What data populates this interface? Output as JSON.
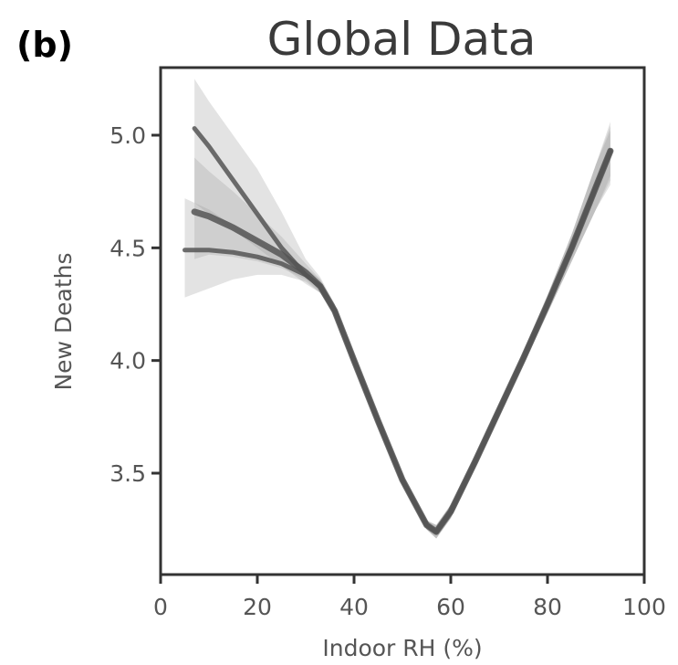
{
  "panel_label": "(b)",
  "chart_data": {
    "type": "line",
    "title": "Global Data",
    "xlabel": "Indoor RH (%)",
    "ylabel": "New Deaths",
    "xlim": [
      0,
      100
    ],
    "ylim": [
      3.05,
      5.3
    ],
    "xticks": [
      0,
      20,
      40,
      60,
      80,
      100
    ],
    "yticks": [
      3.5,
      4.0,
      4.5,
      5.0
    ],
    "grid": false,
    "colors": {
      "line": "#555555",
      "band": "#9a9a9a",
      "axis": "#333333"
    },
    "series": [
      {
        "x": [
          7,
          10,
          15,
          20,
          25,
          30,
          33,
          36,
          40,
          45,
          50,
          55,
          57,
          60,
          65,
          70,
          75,
          80,
          85,
          90,
          93
        ],
        "y": [
          5.03,
          4.95,
          4.8,
          4.65,
          4.5,
          4.38,
          4.33,
          4.22,
          4.0,
          3.73,
          3.47,
          3.27,
          3.24,
          3.33,
          3.55,
          3.78,
          4.01,
          4.25,
          4.5,
          4.77,
          4.93
        ],
        "y_low": [
          4.7,
          4.65,
          4.58,
          4.5,
          4.42,
          4.34,
          4.3,
          4.2,
          3.98,
          3.71,
          3.45,
          3.25,
          3.21,
          3.3,
          3.52,
          3.75,
          3.98,
          4.21,
          4.44,
          4.67,
          4.78
        ],
        "y_high": [
          5.25,
          5.15,
          5.0,
          4.85,
          4.66,
          4.45,
          4.37,
          4.25,
          4.02,
          3.75,
          3.49,
          3.29,
          3.27,
          3.36,
          3.58,
          3.81,
          4.04,
          4.29,
          4.56,
          4.87,
          5.06
        ]
      },
      {
        "x": [
          7,
          10,
          15,
          20,
          25,
          30,
          33,
          36,
          40,
          45,
          50,
          55,
          57,
          60,
          65,
          70,
          75,
          80,
          85,
          90,
          93
        ],
        "y": [
          4.66,
          4.64,
          4.59,
          4.53,
          4.47,
          4.39,
          4.33,
          4.22,
          4.0,
          3.73,
          3.47,
          3.27,
          3.24,
          3.33,
          3.55,
          3.78,
          4.01,
          4.25,
          4.5,
          4.77,
          4.93
        ],
        "y_low": [
          4.45,
          4.47,
          4.46,
          4.44,
          4.41,
          4.36,
          4.3,
          4.2,
          3.98,
          3.71,
          3.45,
          3.25,
          3.21,
          3.3,
          3.52,
          3.75,
          3.98,
          4.21,
          4.44,
          4.67,
          4.82
        ],
        "y_high": [
          4.9,
          4.84,
          4.75,
          4.65,
          4.55,
          4.43,
          4.36,
          4.25,
          4.02,
          3.75,
          3.49,
          3.29,
          3.27,
          3.36,
          3.58,
          3.81,
          4.04,
          4.29,
          4.56,
          4.87,
          5.02
        ]
      },
      {
        "x": [
          5,
          10,
          15,
          20,
          25,
          30,
          33,
          36,
          40,
          45,
          50,
          55,
          57,
          60,
          65,
          70,
          75,
          80,
          85,
          90,
          93
        ],
        "y": [
          4.49,
          4.49,
          4.48,
          4.46,
          4.43,
          4.38,
          4.33,
          4.22,
          4.0,
          3.73,
          3.47,
          3.27,
          3.24,
          3.33,
          3.55,
          3.78,
          4.01,
          4.25,
          4.5,
          4.77,
          4.93
        ],
        "y_low": [
          4.28,
          4.32,
          4.36,
          4.38,
          4.38,
          4.35,
          4.3,
          4.2,
          3.98,
          3.71,
          3.45,
          3.25,
          3.21,
          3.3,
          3.52,
          3.75,
          3.98,
          4.21,
          4.44,
          4.67,
          4.8
        ],
        "y_high": [
          4.72,
          4.67,
          4.6,
          4.54,
          4.48,
          4.41,
          4.36,
          4.25,
          4.02,
          3.75,
          3.49,
          3.29,
          3.27,
          3.36,
          3.58,
          3.81,
          4.04,
          4.29,
          4.56,
          4.87,
          5.04
        ]
      }
    ]
  }
}
